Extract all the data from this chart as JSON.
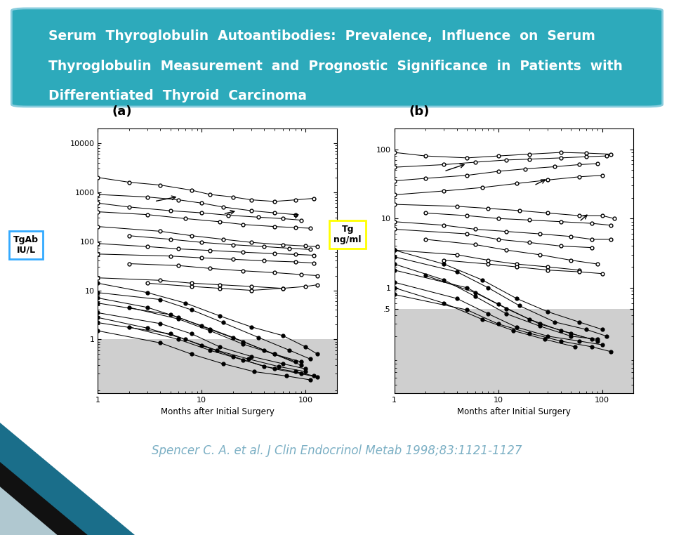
{
  "title_lines": [
    "Serum  Thyroglobulin  Autoantibodies:  Prevalence,  Influence  on  Serum",
    "Thyroglobulin  Measurement  and  Prognostic  Significance  in  Patients  with",
    "Differentiated  Thyroid  Carcinoma"
  ],
  "header_bg_color": "#2DAABB",
  "header_text_color": "#FFFFFF",
  "header_edge_color": "#88CCDD",
  "citation_text": "Spencer C. A. et al. J Clin Endocrinol Metab 1998;83:1121-1127",
  "citation_color": "#7BAFC4",
  "bg_color": "#FFFFFF",
  "panel_a_label": "(a)",
  "panel_b_label": "(b)",
  "ylabel_a_line1": "TgAb",
  "ylabel_a_line2": "IU/L",
  "ylabel_b_line1": "Tg",
  "ylabel_b_line2": "ng/ml",
  "xlabel": "Months after Initial Surgery",
  "ylabel_a_box_color": "#33AAFF",
  "ylabel_b_box_color": "#FFFF00",
  "shaded_region_color": "#C0C0C0",
  "corner_teal": "#1A6E8A",
  "corner_dark": "#111111",
  "corner_light": "#B0C8D0",
  "open_series_a": [
    {
      "x": [
        1,
        2,
        4,
        8,
        12,
        20,
        30,
        50,
        80,
        120
      ],
      "y": [
        2000,
        1600,
        1400,
        1100,
        900,
        800,
        700,
        650,
        700,
        750
      ]
    },
    {
      "x": [
        1,
        3,
        6,
        10,
        16,
        30,
        50,
        80
      ],
      "y": [
        900,
        800,
        700,
        600,
        500,
        420,
        380,
        350
      ]
    },
    {
      "x": [
        1,
        2,
        5,
        10,
        18,
        35,
        60,
        90
      ],
      "y": [
        600,
        500,
        420,
        380,
        340,
        310,
        290,
        270
      ]
    },
    {
      "x": [
        1,
        3,
        7,
        15,
        25,
        50,
        80,
        110
      ],
      "y": [
        400,
        350,
        290,
        250,
        220,
        200,
        190,
        185
      ]
    },
    {
      "x": [
        1,
        4,
        8,
        16,
        30,
        60,
        100,
        130
      ],
      "y": [
        200,
        160,
        130,
        110,
        95,
        85,
        80,
        78
      ]
    },
    {
      "x": [
        2,
        5,
        10,
        20,
        40,
        70,
        110
      ],
      "y": [
        130,
        110,
        95,
        85,
        78,
        72,
        68
      ]
    },
    {
      "x": [
        1,
        3,
        6,
        12,
        25,
        50,
        80,
        120
      ],
      "y": [
        90,
        78,
        70,
        65,
        60,
        56,
        54,
        52
      ]
    },
    {
      "x": [
        1,
        5,
        10,
        20,
        40,
        80,
        120
      ],
      "y": [
        55,
        50,
        46,
        43,
        40,
        38,
        36
      ]
    },
    {
      "x": [
        2,
        6,
        12,
        25,
        50,
        90,
        130
      ],
      "y": [
        35,
        32,
        28,
        25,
        23,
        21,
        20
      ]
    },
    {
      "x": [
        1,
        4,
        8,
        15,
        30,
        60
      ],
      "y": [
        18,
        16,
        14,
        13,
        12,
        11
      ]
    },
    {
      "x": [
        3,
        8,
        15,
        30,
        60,
        100,
        130
      ],
      "y": [
        14,
        12,
        11,
        10,
        11,
        12,
        13
      ]
    }
  ],
  "filled_series_a": [
    {
      "x": [
        1,
        3,
        7,
        15,
        30,
        60,
        100,
        130
      ],
      "y": [
        14,
        9,
        5.5,
        3.0,
        1.8,
        1.2,
        0.7,
        0.5
      ]
    },
    {
      "x": [
        1,
        4,
        8,
        16,
        35,
        70,
        110
      ],
      "y": [
        9,
        6.5,
        4.0,
        2.2,
        1.1,
        0.6,
        0.4
      ]
    },
    {
      "x": [
        1,
        3,
        6,
        12,
        25,
        50,
        90
      ],
      "y": [
        7,
        4.5,
        2.8,
        1.6,
        0.9,
        0.5,
        0.35
      ]
    },
    {
      "x": [
        1,
        5,
        10,
        20,
        40,
        80
      ],
      "y": [
        5.5,
        3.2,
        1.9,
        1.1,
        0.6,
        0.35
      ]
    },
    {
      "x": [
        2,
        6,
        12,
        25,
        50,
        90
      ],
      "y": [
        4.5,
        2.6,
        1.5,
        0.8,
        0.5,
        0.3
      ]
    },
    {
      "x": [
        1,
        4,
        8,
        15,
        30,
        60,
        100
      ],
      "y": [
        3.5,
        2.1,
        1.3,
        0.7,
        0.45,
        0.32,
        0.25
      ]
    },
    {
      "x": [
        1,
        3,
        7,
        14,
        28,
        55,
        100
      ],
      "y": [
        2.8,
        1.7,
        1.0,
        0.6,
        0.4,
        0.28,
        0.22
      ]
    },
    {
      "x": [
        1,
        5,
        10,
        20,
        40,
        80,
        120
      ],
      "y": [
        2.2,
        1.3,
        0.75,
        0.45,
        0.28,
        0.22,
        0.18
      ]
    },
    {
      "x": [
        2,
        6,
        12,
        25,
        50,
        90,
        130
      ],
      "y": [
        1.8,
        1.0,
        0.6,
        0.38,
        0.25,
        0.2,
        0.17
      ]
    },
    {
      "x": [
        1,
        4,
        8,
        16,
        32,
        65,
        110
      ],
      "y": [
        1.5,
        0.85,
        0.5,
        0.32,
        0.22,
        0.18,
        0.15
      ]
    }
  ],
  "open_series_b": [
    {
      "x": [
        1,
        2,
        5,
        10,
        20,
        40,
        70,
        120
      ],
      "y": [
        90,
        80,
        75,
        80,
        85,
        90,
        88,
        85
      ]
    },
    {
      "x": [
        1,
        3,
        6,
        12,
        20,
        40,
        70,
        110
      ],
      "y": [
        55,
        60,
        65,
        70,
        72,
        75,
        78,
        80
      ]
    },
    {
      "x": [
        1,
        2,
        5,
        10,
        18,
        35,
        60,
        90
      ],
      "y": [
        35,
        38,
        42,
        48,
        52,
        56,
        60,
        62
      ]
    },
    {
      "x": [
        1,
        3,
        7,
        15,
        30,
        60,
        100
      ],
      "y": [
        22,
        25,
        28,
        32,
        36,
        40,
        42
      ]
    },
    {
      "x": [
        1,
        4,
        8,
        16,
        30,
        60,
        100,
        130
      ],
      "y": [
        16,
        15,
        14,
        13,
        12,
        11,
        11,
        10
      ]
    },
    {
      "x": [
        2,
        5,
        10,
        20,
        40,
        80,
        120
      ],
      "y": [
        12,
        11,
        10,
        9.5,
        9,
        8.5,
        8
      ]
    },
    {
      "x": [
        1,
        3,
        6,
        12,
        25,
        50,
        80,
        120
      ],
      "y": [
        9,
        8,
        7,
        6.5,
        6,
        5.5,
        5,
        5
      ]
    },
    {
      "x": [
        1,
        5,
        10,
        20,
        40,
        80
      ],
      "y": [
        7,
        6,
        5,
        4.5,
        4,
        3.8
      ]
    },
    {
      "x": [
        2,
        6,
        12,
        25,
        50,
        90
      ],
      "y": [
        5,
        4.2,
        3.5,
        3,
        2.5,
        2.2
      ]
    },
    {
      "x": [
        1,
        4,
        8,
        15,
        30,
        60
      ],
      "y": [
        3.5,
        3,
        2.5,
        2.2,
        2,
        1.8
      ]
    },
    {
      "x": [
        3,
        8,
        15,
        30,
        60,
        100
      ],
      "y": [
        2.5,
        2.2,
        2,
        1.8,
        1.7,
        1.6
      ]
    }
  ],
  "filled_series_b": [
    {
      "x": [
        1,
        3,
        7,
        15,
        30,
        60,
        100
      ],
      "y": [
        3.5,
        2.2,
        1.3,
        0.7,
        0.45,
        0.32,
        0.25
      ]
    },
    {
      "x": [
        1,
        4,
        8,
        16,
        35,
        70,
        110
      ],
      "y": [
        2.8,
        1.7,
        1.0,
        0.55,
        0.32,
        0.25,
        0.2
      ]
    },
    {
      "x": [
        1,
        3,
        6,
        12,
        25,
        50,
        90
      ],
      "y": [
        2.2,
        1.3,
        0.75,
        0.42,
        0.28,
        0.2,
        0.18
      ]
    },
    {
      "x": [
        1,
        5,
        10,
        20,
        40,
        80
      ],
      "y": [
        1.8,
        1.0,
        0.58,
        0.35,
        0.24,
        0.18
      ]
    },
    {
      "x": [
        2,
        6,
        12,
        25,
        50,
        90
      ],
      "y": [
        1.5,
        0.85,
        0.5,
        0.3,
        0.22,
        0.17
      ]
    },
    {
      "x": [
        1,
        4,
        8,
        15,
        30,
        60,
        100
      ],
      "y": [
        1.2,
        0.7,
        0.42,
        0.27,
        0.2,
        0.17,
        0.15
      ]
    },
    {
      "x": [
        1,
        3,
        7,
        14,
        28,
        55
      ],
      "y": [
        1.0,
        0.6,
        0.35,
        0.24,
        0.18,
        0.14
      ]
    },
    {
      "x": [
        1,
        5,
        10,
        20,
        40,
        80,
        120
      ],
      "y": [
        0.8,
        0.48,
        0.3,
        0.22,
        0.17,
        0.14,
        0.12
      ]
    }
  ]
}
